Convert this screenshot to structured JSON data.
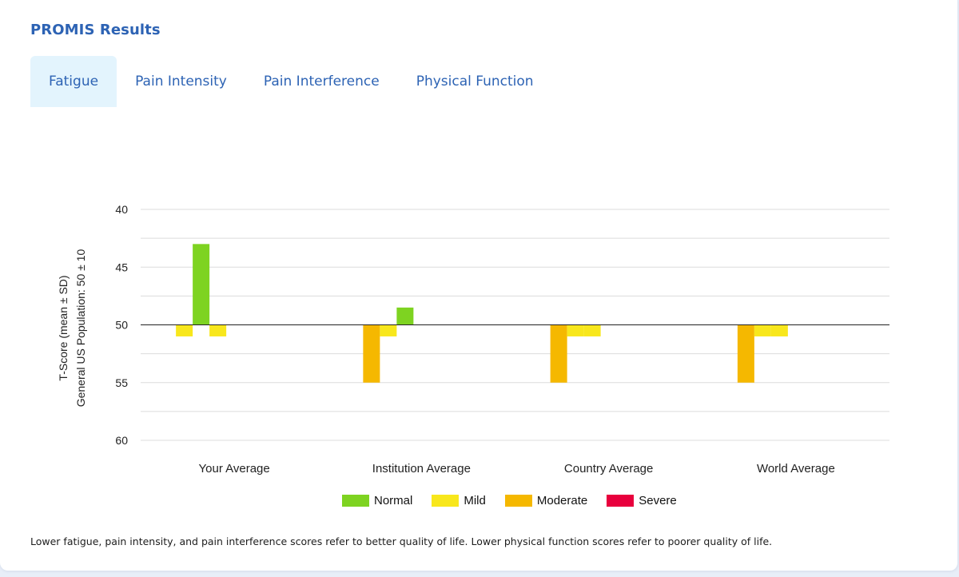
{
  "card": {
    "title": "PROMIS Results"
  },
  "tabs": [
    {
      "label": "Fatigue",
      "active": true
    },
    {
      "label": "Pain Intensity",
      "active": false
    },
    {
      "label": "Pain Interference",
      "active": false
    },
    {
      "label": "Physical Function",
      "active": false
    }
  ],
  "chart_data": {
    "type": "bar",
    "ylabel_line1": "T-Score (mean ± SD)",
    "ylabel_line2": "General US Population: 50 ± 10",
    "yticks": [
      40,
      45,
      50,
      55,
      60
    ],
    "ylim": [
      60,
      40
    ],
    "y_inverted": true,
    "baseline": 50,
    "grid": true,
    "categories": [
      "Your Average",
      "Institution Average",
      "Country Average",
      "World Average"
    ],
    "legend_position": "bottom",
    "series": [
      {
        "name": "Normal",
        "color": "#7ed321"
      },
      {
        "name": "Mild",
        "color": "#f8e71c"
      },
      {
        "name": "Moderate",
        "color": "#f5b800"
      },
      {
        "name": "Severe",
        "color": "#e8003d"
      }
    ],
    "bars": [
      [
        {
          "series": "Mild",
          "value": 51
        },
        {
          "series": "Normal",
          "value": 43
        },
        {
          "series": "Mild",
          "value": 51
        }
      ],
      [
        {
          "series": "Moderate",
          "value": 55
        },
        {
          "series": "Mild",
          "value": 51
        },
        {
          "series": "Normal",
          "value": 48.5
        }
      ],
      [
        {
          "series": "Moderate",
          "value": 55
        },
        {
          "series": "Mild",
          "value": 51
        },
        {
          "series": "Mild",
          "value": 51
        }
      ],
      [
        {
          "series": "Moderate",
          "value": 55
        },
        {
          "series": "Mild",
          "value": 51
        },
        {
          "series": "Mild",
          "value": 51
        }
      ]
    ]
  },
  "footnote": "Lower fatigue, pain intensity, and pain interference scores refer to better quality of life. Lower physical function scores refer to poorer quality of life."
}
